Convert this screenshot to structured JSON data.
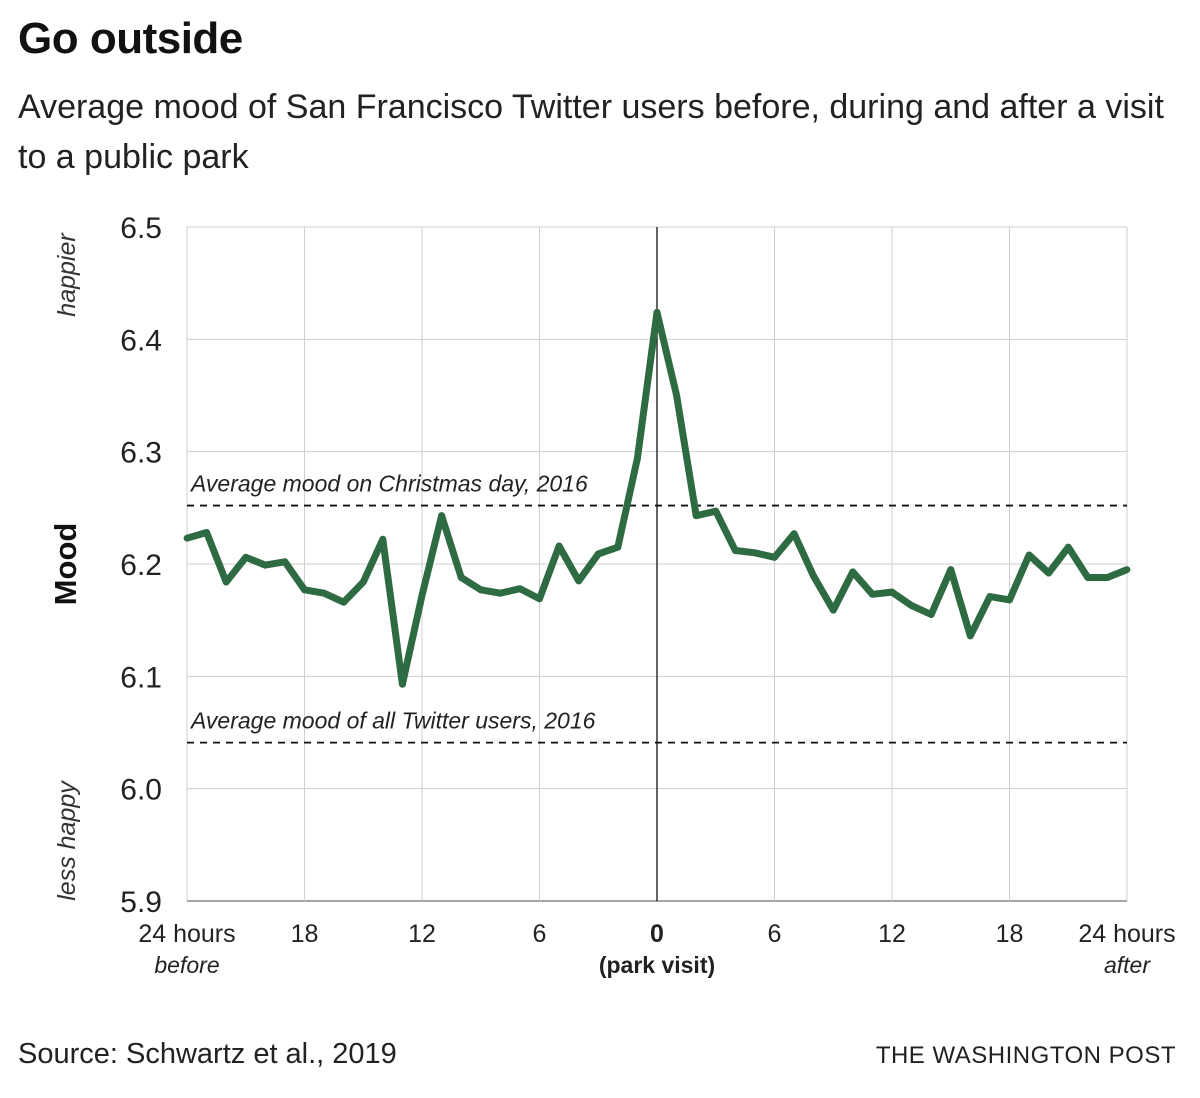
{
  "header": {
    "title": "Go outside",
    "subtitle": "Average mood of San Francisco Twitter users before, during and after a visit to a public park"
  },
  "footer": {
    "source": "Source: Schwartz et al., 2019",
    "credit": "THE WASHINGTON POST"
  },
  "chart_data": {
    "type": "line",
    "title": "Go outside",
    "ylabel": "Mood",
    "ylabel_top": "happier",
    "ylabel_bottom": "less happy",
    "ylim": [
      5.9,
      6.5
    ],
    "yticks": [
      5.9,
      6.0,
      6.1,
      6.2,
      6.3,
      6.4,
      6.5
    ],
    "xlim": [
      -24,
      24
    ],
    "xticks": [
      {
        "value": -24,
        "label": "24 hours",
        "sublabel": "before"
      },
      {
        "value": -18,
        "label": "18",
        "sublabel": ""
      },
      {
        "value": -12,
        "label": "12",
        "sublabel": ""
      },
      {
        "value": -6,
        "label": "6",
        "sublabel": ""
      },
      {
        "value": 0,
        "label": "0",
        "sublabel": "(park visit)"
      },
      {
        "value": 6,
        "label": "6",
        "sublabel": ""
      },
      {
        "value": 12,
        "label": "12",
        "sublabel": ""
      },
      {
        "value": 18,
        "label": "18",
        "sublabel": ""
      },
      {
        "value": 24,
        "label": "24 hours",
        "sublabel": "after"
      }
    ],
    "reference_lines": [
      {
        "value": 6.252,
        "label": "Average mood on Christmas day, 2016"
      },
      {
        "value": 6.041,
        "label": "Average mood of all Twitter users, 2016"
      }
    ],
    "series": [
      {
        "name": "Average mood",
        "color": "#2e6b43",
        "x": [
          -24,
          -23,
          -22,
          -21,
          -20,
          -19,
          -18,
          -17,
          -16,
          -15,
          -14,
          -13,
          -12,
          -11,
          -10,
          -9,
          -8,
          -7,
          -6,
          -5,
          -4,
          -3,
          -2,
          -1,
          0,
          1,
          2,
          3,
          4,
          5,
          6,
          7,
          8,
          9,
          10,
          11,
          12,
          13,
          14,
          15,
          16,
          17,
          18,
          19,
          20,
          21,
          22,
          23,
          24
        ],
        "values": [
          6.223,
          6.228,
          6.184,
          6.206,
          6.199,
          6.202,
          6.177,
          6.174,
          6.166,
          6.184,
          6.222,
          6.093,
          6.172,
          6.243,
          6.188,
          6.177,
          6.174,
          6.178,
          6.169,
          6.216,
          6.185,
          6.209,
          6.215,
          6.294,
          6.424,
          6.35,
          6.243,
          6.247,
          6.212,
          6.21,
          6.206,
          6.227,
          6.189,
          6.159,
          6.193,
          6.173,
          6.175,
          6.163,
          6.155,
          6.195,
          6.136,
          6.171,
          6.168,
          6.208,
          6.192,
          6.215,
          6.188,
          6.188,
          6.195
        ]
      }
    ]
  }
}
